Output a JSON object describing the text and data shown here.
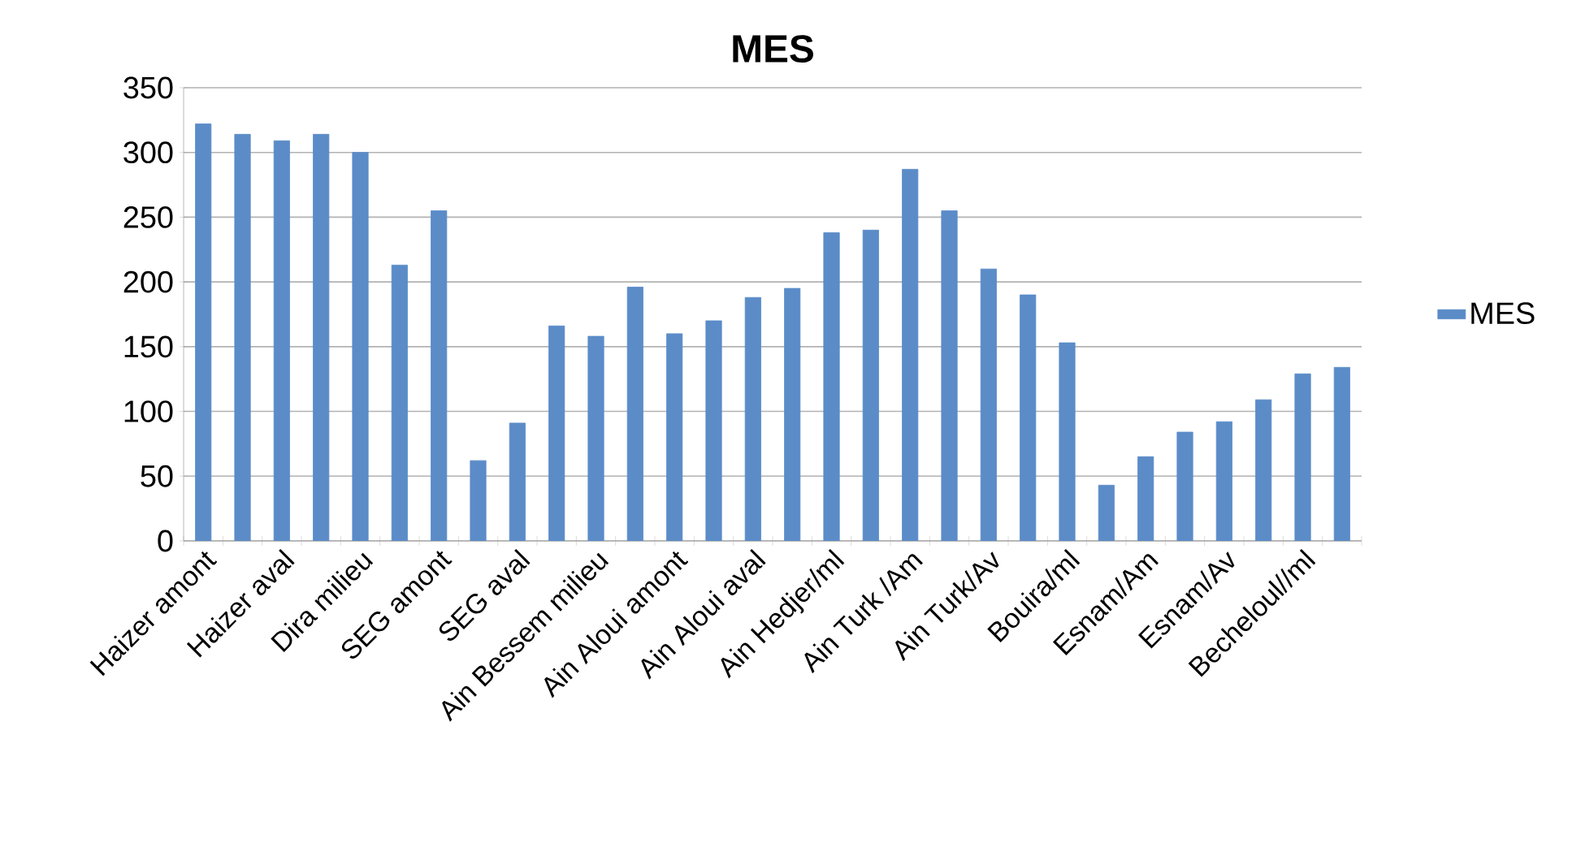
{
  "chart_data": {
    "type": "bar",
    "title": "MES",
    "categories": [
      "Haizer amont",
      null,
      "Haizer aval",
      null,
      "Dira milieu",
      null,
      "SEG amont",
      null,
      "SEG aval",
      null,
      "Ain Bessem milieu",
      null,
      "Ain Aloui amont",
      null,
      "Ain Aloui aval",
      null,
      "Ain Hedjer/ml",
      null,
      "Ain Turk /Am",
      null,
      "Ain Turk/Av",
      null,
      "Bouira/ml",
      null,
      "Esnam/Am",
      null,
      "Esnam/Av",
      null,
      "Becheloul//ml",
      null
    ],
    "series": [
      {
        "name": "MES",
        "color": "#5b8cc8",
        "values": [
          322,
          314,
          309,
          314,
          300,
          213,
          255,
          62,
          91,
          166,
          158,
          196,
          160,
          170,
          188,
          195,
          238,
          240,
          287,
          255,
          210,
          190,
          153,
          43,
          65,
          84,
          92,
          109,
          129,
          134
        ]
      }
    ],
    "ylim": [
      0,
      350
    ],
    "yticks": [
      0,
      50,
      100,
      150,
      200,
      250,
      300,
      350
    ],
    "grid": "y",
    "legend": "right"
  }
}
